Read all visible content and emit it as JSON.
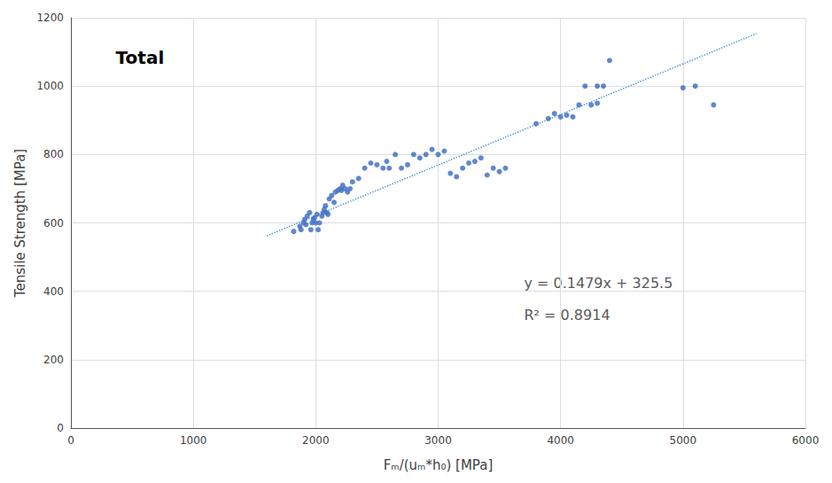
{
  "chart_data": {
    "type": "scatter",
    "title": "Total",
    "xlabel": "Fₘ/(uₘ*h₀) [MPa]",
    "ylabel": "Tensile Strength [MPa]",
    "annotations": [
      "y = 0.1479x + 325.5",
      "R² = 0.8914"
    ],
    "series": [
      {
        "type": "scatter",
        "color": "#4472C4",
        "marker": "circle",
        "x": [
          1820,
          1870,
          1880,
          1900,
          1910,
          1920,
          1930,
          1950,
          1960,
          1970,
          1980,
          1990,
          2000,
          2010,
          2020,
          2030,
          2050,
          2060,
          2070,
          2080,
          2090,
          2100,
          2110,
          2130,
          2150,
          2160,
          2180,
          2200,
          2210,
          2220,
          2240,
          2260,
          2280,
          2300,
          2350,
          2400,
          2450,
          2500,
          2550,
          2580,
          2600,
          2650,
          2700,
          2750,
          2800,
          2850,
          2900,
          2950,
          3000,
          3050,
          3100,
          3150,
          3200,
          3250,
          3300,
          3350,
          3400,
          3450,
          3500,
          3550,
          3800,
          3900,
          3950,
          4000,
          4050,
          4100,
          4150,
          4200,
          4250,
          4300,
          4350,
          4400,
          4300,
          5000,
          5100,
          5250
        ],
        "values": [
          575,
          590,
          580,
          600,
          610,
          595,
          620,
          630,
          580,
          600,
          610,
          615,
          600,
          625,
          580,
          600,
          620,
          630,
          640,
          650,
          630,
          625,
          670,
          680,
          660,
          690,
          695,
          700,
          695,
          710,
          700,
          690,
          700,
          720,
          730,
          760,
          775,
          770,
          760,
          780,
          760,
          800,
          760,
          770,
          800,
          790,
          800,
          815,
          800,
          810,
          745,
          735,
          760,
          775,
          780,
          790,
          740,
          760,
          750,
          760,
          890,
          905,
          920,
          910,
          915,
          910,
          945,
          1000,
          945,
          1000,
          1000,
          1075,
          950,
          995,
          1000,
          945
        ]
      },
      {
        "type": "line",
        "color": "#5B9BD5",
        "line_style": "dotted",
        "x": [
          1600,
          5600
        ],
        "values": [
          562.14,
          1153.74
        ]
      }
    ],
    "xlim": [
      0,
      6000
    ],
    "ylim": [
      0,
      1200
    ],
    "xticks": [
      0,
      1000,
      2000,
      3000,
      4000,
      5000,
      6000
    ],
    "yticks": [
      0,
      200,
      400,
      600,
      800,
      1000,
      1200
    ],
    "grid": true
  }
}
